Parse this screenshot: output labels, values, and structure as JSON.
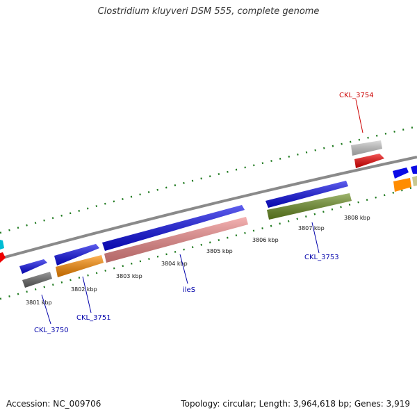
{
  "title": "Clostridium kluyveri DSM 555, complete genome",
  "footer": {
    "accession": "Accession: NC_009706",
    "summary": "Topology: circular; Length: 3,964,618 bp; Genes: 3,919"
  },
  "tick_labels": [
    "3801 kbp",
    "3802 kbp",
    "3803 kbp",
    "3804 kbp",
    "3805 kbp",
    "3806 kbp",
    "3807 kbp",
    "3808 kbp"
  ],
  "gene_labels": [
    {
      "name": "CKL_3750",
      "color": "#0000aa"
    },
    {
      "name": "CKL_3751",
      "color": "#0000aa"
    },
    {
      "name": "ileS",
      "color": "#0000aa"
    },
    {
      "name": "CKL_3753",
      "color": "#0000aa"
    },
    {
      "name": "CKL_3754",
      "color": "#cc0000"
    }
  ],
  "colors": {
    "backbone": "#8a8a8a",
    "ticks": "#1f7a1f",
    "cds": "#0a0ae6",
    "gene_dark_gray": "#666666",
    "gene_orange": "#ff8c00",
    "rrna_pink": "#f08a8a",
    "gene_olive": "#6b8e23",
    "gene_light_gray": "#c8c8c8",
    "gene_red": "#ee0000",
    "gene_cyan": "#00bcd4",
    "gene_khaki": "#c8c890"
  }
}
